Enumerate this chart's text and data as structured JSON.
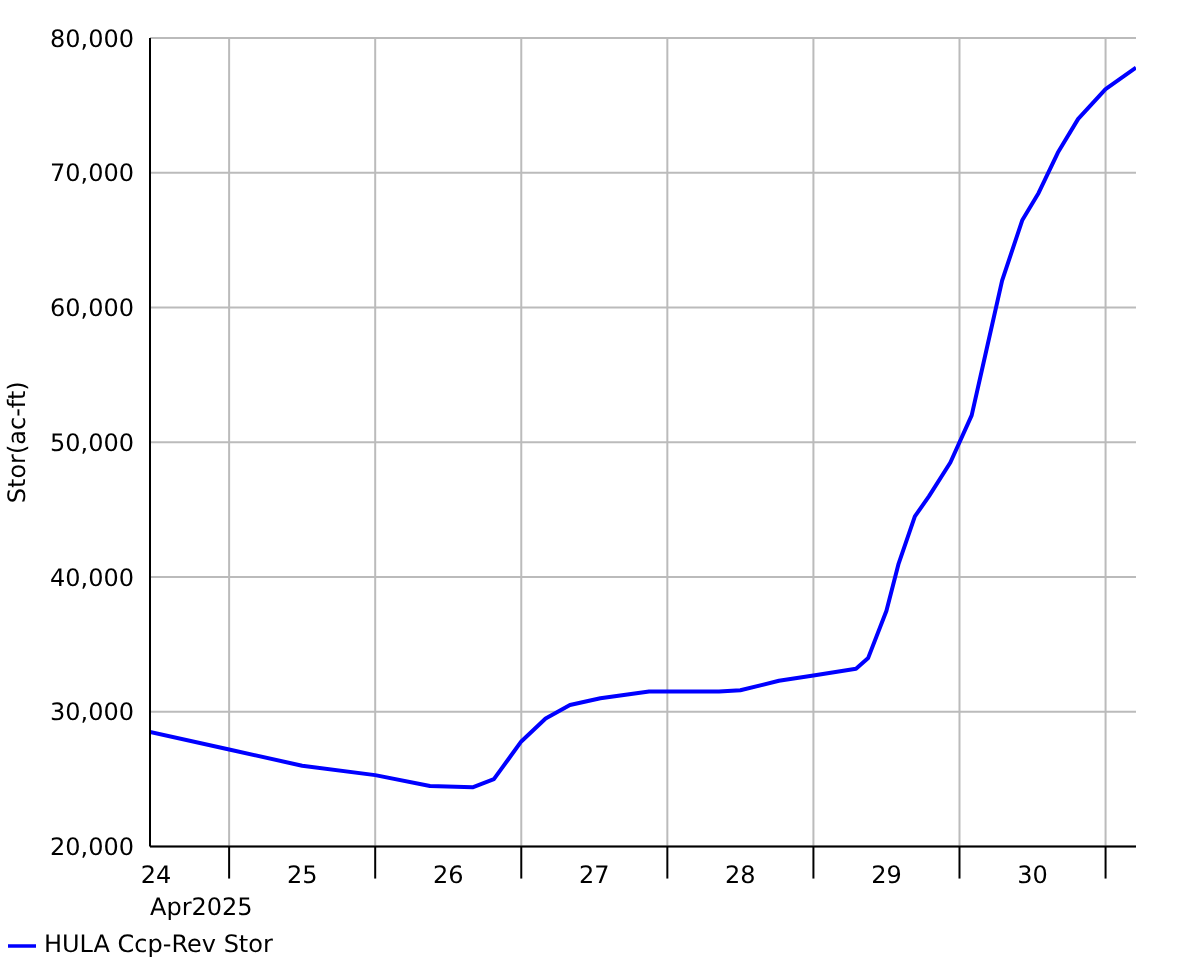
{
  "chart_data": {
    "type": "line",
    "xlabel": "Apr2025",
    "ylabel": "Stor(ac-ft)",
    "x": [
      "2025-04-24T11:00",
      "2025-04-25T00:00",
      "2025-04-25T12:00",
      "2025-04-26T00:00",
      "2025-04-26T09:00",
      "2025-04-26T16:00",
      "2025-04-26T19:30",
      "2025-04-27T00:00",
      "2025-04-27T04:00",
      "2025-04-27T08:00",
      "2025-04-27T13:00",
      "2025-04-27T21:00",
      "2025-04-28T08:30",
      "2025-04-28T12:00",
      "2025-04-28T18:20",
      "2025-04-29T00:00",
      "2025-04-29T07:00",
      "2025-04-29T09:00",
      "2025-04-29T12:00",
      "2025-04-29T14:00",
      "2025-04-29T16:40",
      "2025-04-29T19:00",
      "2025-04-29T22:30",
      "2025-04-30T02:00",
      "2025-04-30T04:30",
      "2025-04-30T07:00",
      "2025-04-30T10:20",
      "2025-04-30T13:00",
      "2025-04-30T16:10",
      "2025-04-30T19:30",
      "2025-05-01T00:00",
      "2025-05-01T05:00"
    ],
    "series": [
      {
        "name": "HULA Ccp-Rev Stor",
        "color": "#0000ff",
        "values": [
          28500,
          27200,
          26000,
          25300,
          24500,
          24400,
          25000,
          27800,
          29500,
          30500,
          31000,
          31500,
          31500,
          31600,
          32300,
          32700,
          33200,
          34000,
          37500,
          41000,
          44500,
          46000,
          48500,
          52000,
          57000,
          62000,
          66500,
          68500,
          71500,
          74000,
          76200,
          77800
        ]
      }
    ],
    "xlim": [
      "2025-04-24T11:00",
      "2025-05-01T05:00"
    ],
    "xticks": [
      {
        "value": "2025-04-24T12:00",
        "label": "24"
      },
      {
        "value": "2025-04-25T00:00",
        "label": null
      },
      {
        "value": "2025-04-25T12:00",
        "label": "25"
      },
      {
        "value": "2025-04-26T00:00",
        "label": null
      },
      {
        "value": "2025-04-26T12:00",
        "label": "26"
      },
      {
        "value": "2025-04-27T00:00",
        "label": null
      },
      {
        "value": "2025-04-27T12:00",
        "label": "27"
      },
      {
        "value": "2025-04-28T00:00",
        "label": null
      },
      {
        "value": "2025-04-28T12:00",
        "label": "28"
      },
      {
        "value": "2025-04-29T00:00",
        "label": null
      },
      {
        "value": "2025-04-29T12:00",
        "label": "29"
      },
      {
        "value": "2025-04-30T00:00",
        "label": null
      },
      {
        "value": "2025-04-30T12:00",
        "label": "30"
      },
      {
        "value": "2025-05-01T00:00",
        "label": null
      }
    ],
    "ylim": [
      20000,
      80000
    ],
    "yticks": [
      {
        "value": 20000,
        "label": "20,000"
      },
      {
        "value": 30000,
        "label": "30,000"
      },
      {
        "value": 40000,
        "label": "40,000"
      },
      {
        "value": 50000,
        "label": "50,000"
      },
      {
        "value": 60000,
        "label": "60,000"
      },
      {
        "value": 70000,
        "label": "70,000"
      },
      {
        "value": 80000,
        "label": "80,000"
      }
    ],
    "grid": true,
    "legend": "bottom left",
    "marker": "none",
    "line_style": "solid"
  }
}
